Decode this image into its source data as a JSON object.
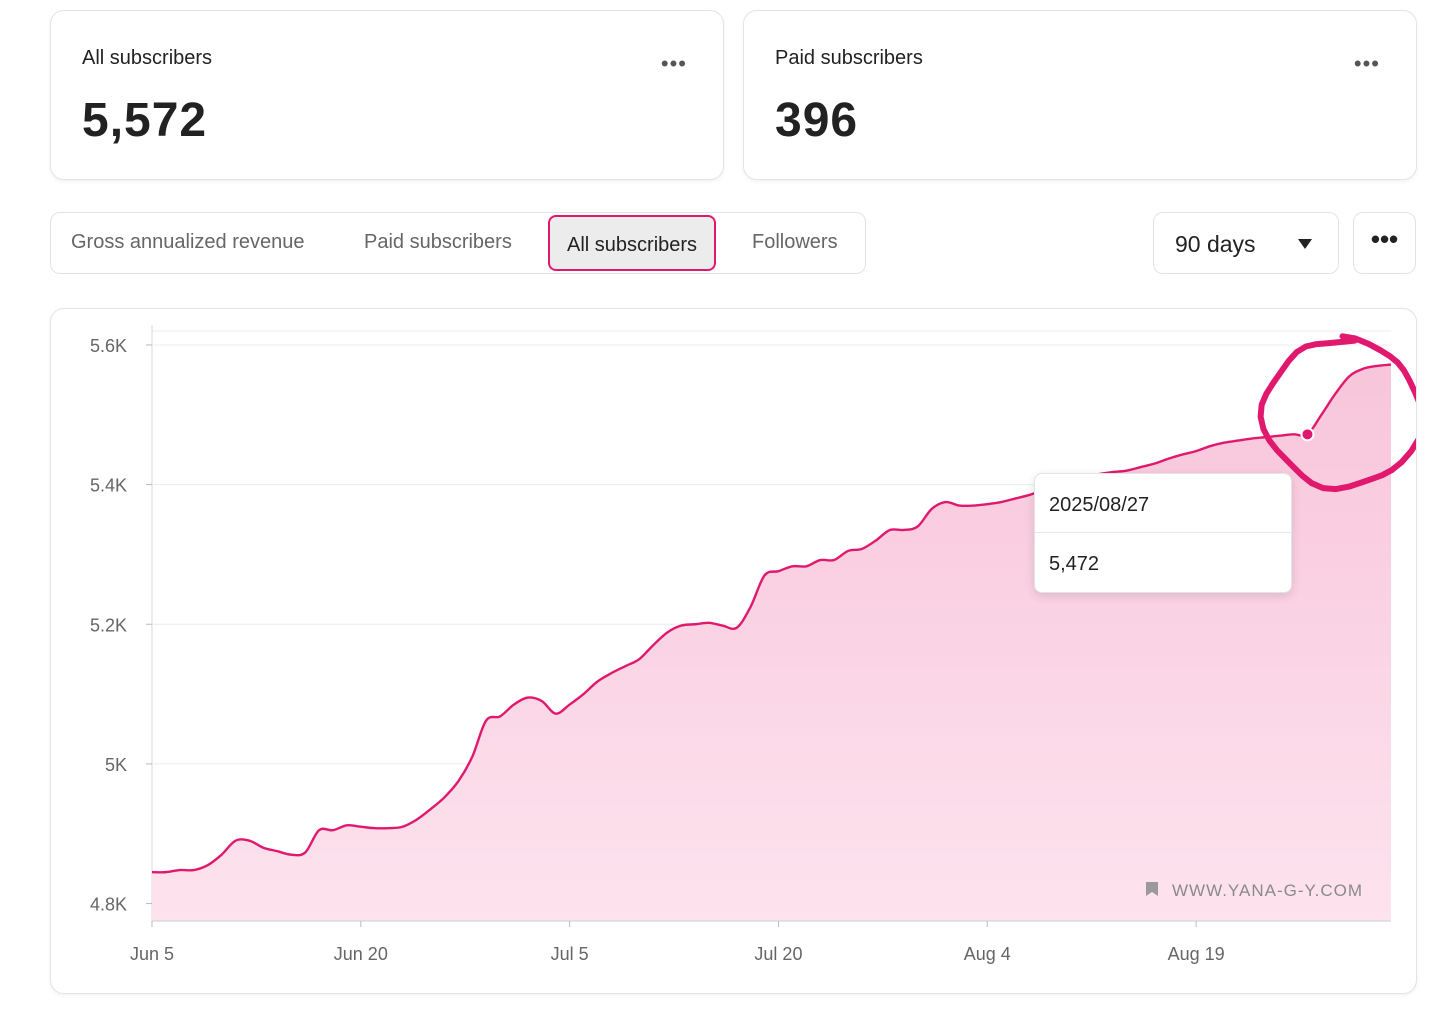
{
  "stats": [
    {
      "label": "All subscribers",
      "value": "5,572"
    },
    {
      "label": "Paid subscribers",
      "value": "396"
    }
  ],
  "tabs": [
    {
      "label": "Gross annualized revenue",
      "active": false
    },
    {
      "label": "Paid subscribers",
      "active": false
    },
    {
      "label": "All subscribers",
      "active": true
    },
    {
      "label": "Followers",
      "active": false
    }
  ],
  "range": {
    "label": "90 days"
  },
  "more_button": {
    "label": "•••"
  },
  "card_menu_label": "•••",
  "tooltip": {
    "date": "2025/08/27",
    "value": "5,472"
  },
  "watermark": "WWW.YANA-G-Y.COM",
  "colors": {
    "accent": "#e0196e",
    "fill_top": "#f8c5da",
    "fill_bottom": "#fde3ee",
    "grid": "#ececec"
  },
  "chart_data": {
    "type": "area",
    "series_label": "All subscribers",
    "x_tick_labels": [
      "Jun 5",
      "Jun 20",
      "Jul 5",
      "Jul 20",
      "Aug 4",
      "Aug 19"
    ],
    "y_tick_labels": [
      "4.8K",
      "5K",
      "5.2K",
      "5.4K",
      "5.6K"
    ],
    "y_tick_values": [
      4800,
      5000,
      5200,
      5400,
      5600
    ],
    "ylim": [
      4775,
      5620
    ],
    "xlim": [
      "2025-06-05",
      "2025-09-02"
    ],
    "grid": true,
    "highlight": {
      "x": "2025-08-27",
      "y": 5472
    },
    "points": [
      [
        "2025-06-05",
        4845
      ],
      [
        "2025-06-06",
        4845
      ],
      [
        "2025-06-07",
        4848
      ],
      [
        "2025-06-08",
        4848
      ],
      [
        "2025-06-09",
        4855
      ],
      [
        "2025-06-10",
        4870
      ],
      [
        "2025-06-11",
        4890
      ],
      [
        "2025-06-12",
        4890
      ],
      [
        "2025-06-13",
        4880
      ],
      [
        "2025-06-14",
        4875
      ],
      [
        "2025-06-15",
        4870
      ],
      [
        "2025-06-16",
        4873
      ],
      [
        "2025-06-17",
        4905
      ],
      [
        "2025-06-18",
        4905
      ],
      [
        "2025-06-19",
        4912
      ],
      [
        "2025-06-20",
        4910
      ],
      [
        "2025-06-21",
        4908
      ],
      [
        "2025-06-22",
        4908
      ],
      [
        "2025-06-23",
        4910
      ],
      [
        "2025-06-24",
        4920
      ],
      [
        "2025-06-25",
        4935
      ],
      [
        "2025-06-26",
        4952
      ],
      [
        "2025-06-27",
        4975
      ],
      [
        "2025-06-28",
        5010
      ],
      [
        "2025-06-29",
        5062
      ],
      [
        "2025-06-30",
        5068
      ],
      [
        "2025-07-01",
        5085
      ],
      [
        "2025-07-02",
        5095
      ],
      [
        "2025-07-03",
        5090
      ],
      [
        "2025-07-04",
        5072
      ],
      [
        "2025-07-05",
        5085
      ],
      [
        "2025-07-06",
        5100
      ],
      [
        "2025-07-07",
        5118
      ],
      [
        "2025-07-08",
        5130
      ],
      [
        "2025-07-09",
        5140
      ],
      [
        "2025-07-10",
        5150
      ],
      [
        "2025-07-11",
        5170
      ],
      [
        "2025-07-12",
        5188
      ],
      [
        "2025-07-13",
        5198
      ],
      [
        "2025-07-14",
        5200
      ],
      [
        "2025-07-15",
        5202
      ],
      [
        "2025-07-16",
        5198
      ],
      [
        "2025-07-17",
        5195
      ],
      [
        "2025-07-18",
        5225
      ],
      [
        "2025-07-19",
        5270
      ],
      [
        "2025-07-20",
        5276
      ],
      [
        "2025-07-21",
        5283
      ],
      [
        "2025-07-22",
        5283
      ],
      [
        "2025-07-23",
        5292
      ],
      [
        "2025-07-24",
        5292
      ],
      [
        "2025-07-25",
        5305
      ],
      [
        "2025-07-26",
        5308
      ],
      [
        "2025-07-27",
        5320
      ],
      [
        "2025-07-28",
        5335
      ],
      [
        "2025-07-29",
        5335
      ],
      [
        "2025-07-30",
        5340
      ],
      [
        "2025-07-31",
        5365
      ],
      [
        "2025-08-01",
        5375
      ],
      [
        "2025-08-02",
        5370
      ],
      [
        "2025-08-03",
        5370
      ],
      [
        "2025-08-04",
        5372
      ],
      [
        "2025-08-05",
        5375
      ],
      [
        "2025-08-06",
        5380
      ],
      [
        "2025-08-07",
        5385
      ],
      [
        "2025-08-08",
        5392
      ],
      [
        "2025-08-09",
        5398
      ],
      [
        "2025-08-10",
        5405
      ],
      [
        "2025-08-11",
        5410
      ],
      [
        "2025-08-12",
        5415
      ],
      [
        "2025-08-13",
        5418
      ],
      [
        "2025-08-14",
        5420
      ],
      [
        "2025-08-15",
        5425
      ],
      [
        "2025-08-16",
        5430
      ],
      [
        "2025-08-17",
        5437
      ],
      [
        "2025-08-18",
        5443
      ],
      [
        "2025-08-19",
        5448
      ],
      [
        "2025-08-20",
        5455
      ],
      [
        "2025-08-21",
        5460
      ],
      [
        "2025-08-22",
        5463
      ],
      [
        "2025-08-23",
        5466
      ],
      [
        "2025-08-24",
        5468
      ],
      [
        "2025-08-25",
        5470
      ],
      [
        "2025-08-26",
        5472
      ],
      [
        "2025-08-27",
        5472
      ],
      [
        "2025-08-28",
        5500
      ],
      [
        "2025-08-29",
        5530
      ],
      [
        "2025-08-30",
        5555
      ],
      [
        "2025-08-31",
        5566
      ],
      [
        "2025-09-01",
        5570
      ],
      [
        "2025-09-02",
        5572
      ]
    ]
  }
}
